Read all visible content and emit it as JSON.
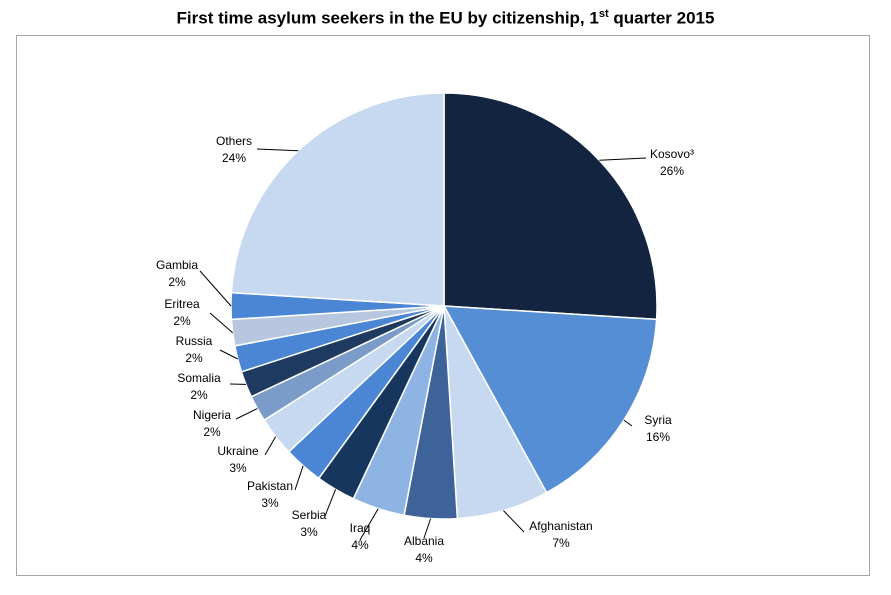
{
  "chart_data": {
    "type": "pie",
    "title": "First time asylum seekers in the EU by citizenship, 1",
    "title_sup": "st",
    "title_suffix": " quarter 2015",
    "unit": "%",
    "start_angle_deg": 0,
    "direction": "clockwise",
    "slices": [
      {
        "name": "Kosovo³",
        "value": 26,
        "label": "26%",
        "color": "#12243f"
      },
      {
        "name": "Syria",
        "value": 16,
        "label": "16%",
        "color": "#558ed5"
      },
      {
        "name": "Afghanistan",
        "value": 7,
        "label": "7%",
        "color": "#c6d9f1"
      },
      {
        "name": "Albania",
        "value": 4,
        "label": "4%",
        "color": "#3d6399"
      },
      {
        "name": "Iraq",
        "value": 4,
        "label": "4%",
        "color": "#8eb4e3"
      },
      {
        "name": "Serbia",
        "value": 3,
        "label": "3%",
        "color": "#17365d"
      },
      {
        "name": "Pakistan",
        "value": 3,
        "label": "3%",
        "color": "#4a86d4"
      },
      {
        "name": "Ukraine",
        "value": 3,
        "label": "3%",
        "color": "#c6d9f1"
      },
      {
        "name": "Nigeria",
        "value": 2,
        "label": "2%",
        "color": "#7b9bc9"
      },
      {
        "name": "Somalia",
        "value": 2,
        "label": "2%",
        "color": "#1f3a60"
      },
      {
        "name": "Russia",
        "value": 2,
        "label": "2%",
        "color": "#4a86d4"
      },
      {
        "name": "Eritrea",
        "value": 2,
        "label": "2%",
        "color": "#b8c7e0"
      },
      {
        "name": "Gambia",
        "value": 2,
        "label": "2%",
        "color": "#4a86d4"
      },
      {
        "name": "Others",
        "value": 24,
        "label": "24%",
        "color": "#c6d9f1"
      }
    ]
  }
}
